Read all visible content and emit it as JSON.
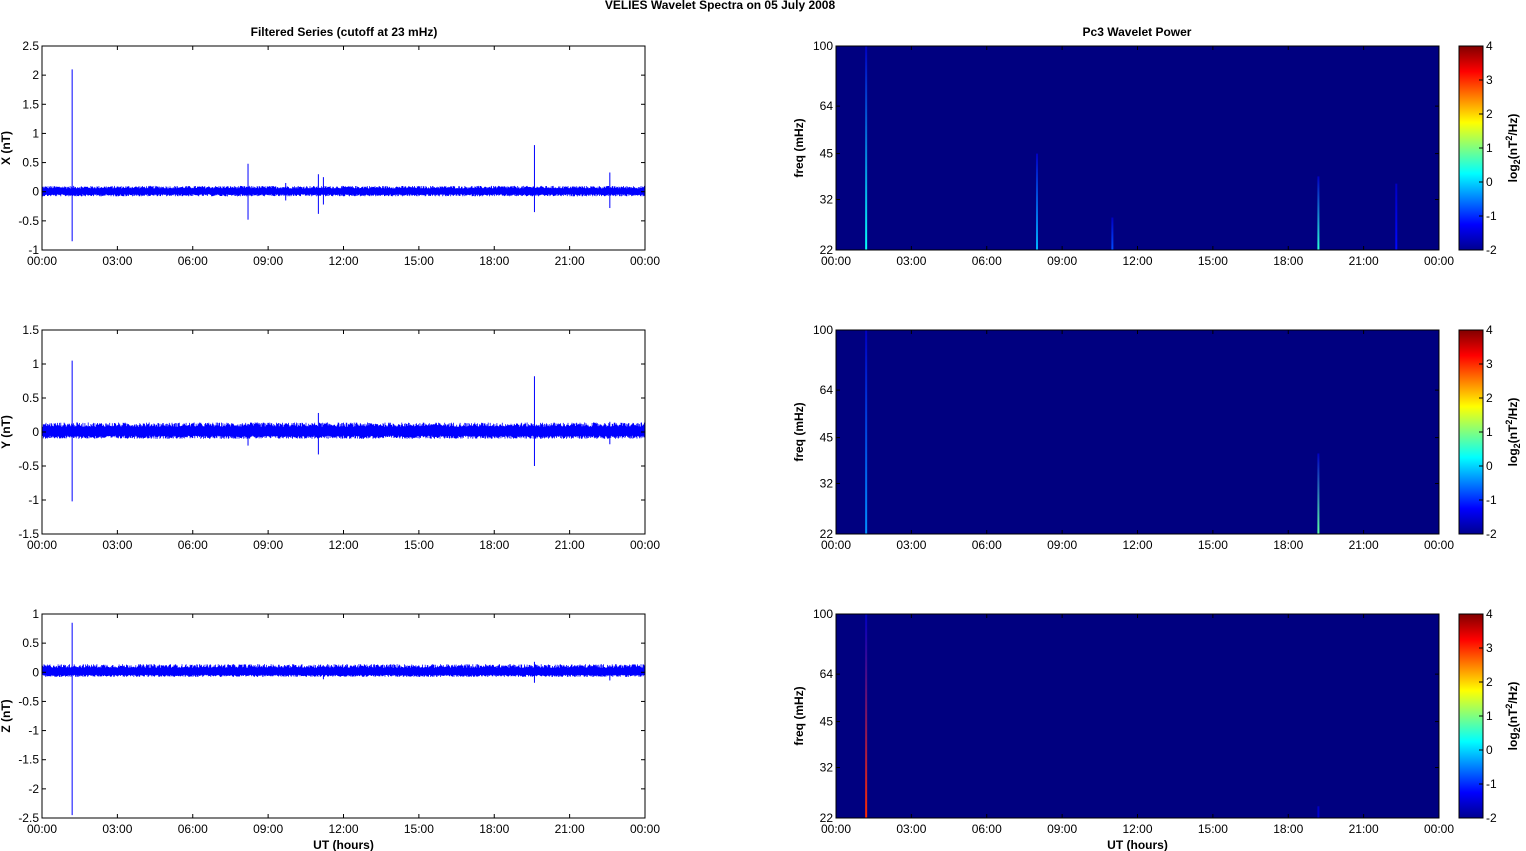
{
  "figure": {
    "title": "VELIES Wavelet Spectra on 05 July      2008",
    "left_column_title": "Filtered Series (cutoff at 23 mHz)",
    "right_column_title": "Pc3 Wavelet Power",
    "colors": {
      "trace": "#0000ff",
      "spectrum_background": "#00008f",
      "frame": "#000000"
    },
    "colormap": "jet"
  },
  "chart_data": [
    {
      "type": "line",
      "title": "Filtered Series (cutoff at 23 mHz)",
      "xlabel": "",
      "ylabel": "X (nT)",
      "xlim": [
        0,
        24
      ],
      "ylim": [
        -1,
        2.5
      ],
      "xticks": [
        "00:00",
        "03:00",
        "06:00",
        "09:00",
        "12:00",
        "15:00",
        "18:00",
        "21:00",
        "00:00"
      ],
      "yticks": [
        "-1",
        "-0.5",
        "0",
        "0.5",
        "1",
        "1.5",
        "2",
        "2.5"
      ],
      "series": [
        {
          "color": "#0000ff",
          "baseline_band": [
            -0.08,
            0.1
          ],
          "spikes": [
            {
              "x": 1.2,
              "max": 2.1,
              "min": -0.85
            },
            {
              "x": 8.2,
              "max": 0.48,
              "min": -0.48
            },
            {
              "x": 9.7,
              "max": 0.15,
              "min": -0.15
            },
            {
              "x": 11.0,
              "max": 0.3,
              "min": -0.38
            },
            {
              "x": 11.2,
              "max": 0.25,
              "min": -0.22
            },
            {
              "x": 19.6,
              "max": 0.8,
              "min": -0.35
            },
            {
              "x": 22.6,
              "max": 0.33,
              "min": -0.28
            }
          ]
        }
      ]
    },
    {
      "type": "heatmap",
      "title": "Pc3 Wavelet Power",
      "ylabel": "freq (mHz)",
      "xlim": [
        0,
        24
      ],
      "ylim": [
        22,
        100
      ],
      "y_scale": "log",
      "xticks": [
        "00:00",
        "03:00",
        "06:00",
        "09:00",
        "12:00",
        "15:00",
        "18:00",
        "21:00",
        "00:00"
      ],
      "yticks": [
        "22",
        "32",
        "45",
        "64",
        "100"
      ],
      "colorbar": {
        "label": "log2(nT2/Hz)",
        "range": [
          -2,
          4
        ],
        "ticks": [
          "-2",
          "-1",
          "0",
          "1",
          "2",
          "3",
          "4"
        ]
      },
      "background_value": -2,
      "features": [
        {
          "x": 1.2,
          "fmax": 100,
          "value": 0.3
        },
        {
          "x": 8.0,
          "fmax": 45,
          "value": -0.2
        },
        {
          "x": 11.0,
          "fmax": 28,
          "value": -0.8
        },
        {
          "x": 19.2,
          "fmax": 38,
          "value": 0.5
        },
        {
          "x": 22.3,
          "fmax": 36,
          "value": -1.2
        }
      ]
    },
    {
      "type": "line",
      "xlabel": "",
      "ylabel": "Y (nT)",
      "xlim": [
        0,
        24
      ],
      "ylim": [
        -1.5,
        1.5
      ],
      "xticks": [
        "00:00",
        "03:00",
        "06:00",
        "09:00",
        "12:00",
        "15:00",
        "18:00",
        "21:00",
        "00:00"
      ],
      "yticks": [
        "-1.5",
        "-1",
        "-0.5",
        "0",
        "0.5",
        "1",
        "1.5"
      ],
      "series": [
        {
          "color": "#0000ff",
          "baseline_band": [
            -0.1,
            0.14
          ],
          "spikes": [
            {
              "x": 1.2,
              "max": 1.05,
              "min": -1.02
            },
            {
              "x": 8.2,
              "max": 0.12,
              "min": -0.2
            },
            {
              "x": 11.0,
              "max": 0.28,
              "min": -0.33
            },
            {
              "x": 19.6,
              "max": 0.82,
              "min": -0.5
            },
            {
              "x": 22.6,
              "max": 0.15,
              "min": -0.18
            }
          ]
        }
      ]
    },
    {
      "type": "heatmap",
      "ylabel": "freq (mHz)",
      "xlim": [
        0,
        24
      ],
      "ylim": [
        22,
        100
      ],
      "y_scale": "log",
      "xticks": [
        "00:00",
        "03:00",
        "06:00",
        "09:00",
        "12:00",
        "15:00",
        "18:00",
        "21:00",
        "00:00"
      ],
      "yticks": [
        "22",
        "32",
        "45",
        "64",
        "100"
      ],
      "colorbar": {
        "label": "log2(nT2/Hz)",
        "range": [
          -2,
          4
        ],
        "ticks": [
          "-2",
          "-1",
          "0",
          "1",
          "2",
          "3",
          "4"
        ]
      },
      "background_value": -2,
      "features": [
        {
          "x": 1.2,
          "fmax": 100,
          "value": -0.4
        },
        {
          "x": 19.2,
          "fmax": 40,
          "value": 0.8
        }
      ]
    },
    {
      "type": "line",
      "xlabel": "UT (hours)",
      "ylabel": "Z (nT)",
      "xlim": [
        0,
        24
      ],
      "ylim": [
        -2.5,
        1
      ],
      "xticks": [
        "00:00",
        "03:00",
        "06:00",
        "09:00",
        "12:00",
        "15:00",
        "18:00",
        "21:00",
        "00:00"
      ],
      "yticks": [
        "-2.5",
        "-2",
        "-1.5",
        "-1",
        "-0.5",
        "0",
        "0.5",
        "1"
      ],
      "series": [
        {
          "color": "#0000ff",
          "baseline_band": [
            -0.08,
            0.14
          ],
          "spikes": [
            {
              "x": 1.2,
              "max": 0.85,
              "min": -2.45
            },
            {
              "x": 11.2,
              "max": 0.12,
              "min": -0.12
            },
            {
              "x": 19.6,
              "max": 0.18,
              "min": -0.18
            },
            {
              "x": 22.6,
              "max": 0.12,
              "min": -0.14
            }
          ]
        }
      ]
    },
    {
      "type": "heatmap",
      "xlabel": "UT (hours)",
      "ylabel": "freq (mHz)",
      "xlim": [
        0,
        24
      ],
      "ylim": [
        22,
        100
      ],
      "y_scale": "log",
      "xticks": [
        "00:00",
        "03:00",
        "06:00",
        "09:00",
        "12:00",
        "15:00",
        "18:00",
        "21:00",
        "00:00"
      ],
      "yticks": [
        "22",
        "32",
        "45",
        "64",
        "100"
      ],
      "colorbar": {
        "label": "log2(nT2/Hz)",
        "range": [
          -2,
          4
        ],
        "ticks": [
          "-2",
          "-1",
          "0",
          "1",
          "2",
          "3",
          "4"
        ]
      },
      "background_value": -2,
      "features": [
        {
          "x": 1.2,
          "fmax": 100,
          "value": 3.0
        },
        {
          "x": 19.2,
          "fmax": 24,
          "value": -1.5
        }
      ]
    }
  ]
}
